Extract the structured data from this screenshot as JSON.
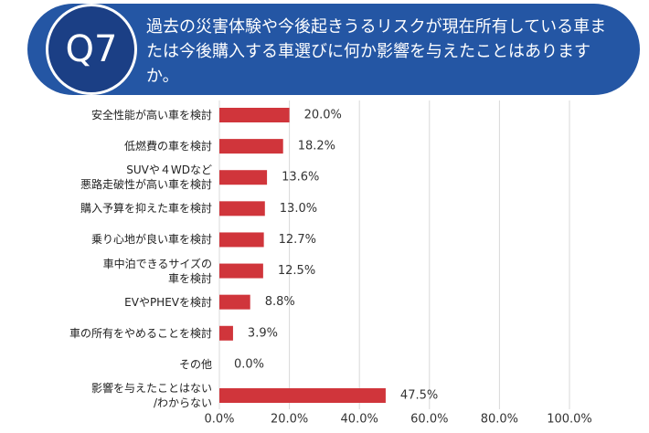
{
  "header": {
    "badge": "Q7",
    "question": "過去の災害体験や今後起きうるリスクが現在所有している車または今後購入する車選びに何か影響を与えたことはありますか。"
  },
  "chart_data": {
    "type": "bar",
    "orientation": "horizontal",
    "categories": [
      "安全性能が高い車を検討",
      "低燃費の車を検討",
      "SUVや４WDなど\n悪路走破性が高い車を検討",
      "購入予算を抑えた車を検討",
      "乗り心地が良い車を検討",
      "車中泊できるサイズの\n車を検討",
      "EVやPHEVを検討",
      "車の所有をやめることを検討",
      "その他",
      "影響を与えたことはない\n/わからない"
    ],
    "values": [
      20.0,
      18.2,
      13.6,
      13.0,
      12.7,
      12.5,
      8.8,
      3.9,
      0.0,
      47.5
    ],
    "value_labels": [
      "20.0%",
      "18.2%",
      "13.6%",
      "13.0%",
      "12.7%",
      "12.5%",
      "8.8%",
      "3.9%",
      "0.0%",
      "47.5%"
    ],
    "color": "#d0353b",
    "xlim": [
      0,
      100
    ],
    "xticks": [
      {
        "value": 0,
        "label": "0.0%"
      },
      {
        "value": 20,
        "label": "20.0%"
      },
      {
        "value": 40,
        "label": "40.0%"
      },
      {
        "value": 60,
        "label": "60.0%"
      },
      {
        "value": 80,
        "label": "80.0%"
      },
      {
        "value": 100,
        "label": "100.0%"
      }
    ],
    "grid": true
  }
}
